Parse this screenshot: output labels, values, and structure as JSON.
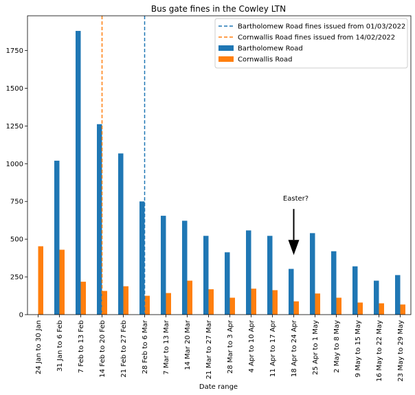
{
  "chart_data": {
    "type": "bar",
    "title": "Bus gate fines in the Cowley LTN",
    "xlabel": "Date range",
    "ylabel": "",
    "ylim": [
      0,
      1980
    ],
    "yticks": [
      0,
      250,
      500,
      750,
      1000,
      1250,
      1500,
      1750
    ],
    "grid": false,
    "legend_position": "top-right",
    "categories": [
      "24 Jan to 30 Jan",
      "31 Jan to 6 Feb",
      "7 Feb to 13 Feb",
      "14 Feb to 20 Feb",
      "21 Feb to 27 Feb",
      "28 Feb to 6 Mar",
      "7 Mar to 13 Mar",
      "14 Mar 20 Mar",
      "21 Mar to 27 Mar",
      "28 Mar to 3 Apr",
      "4 Apr to 10 Apr",
      "11 Apr to 17 Apr",
      "18 Apr to 24 Apr",
      "25 Apr to 1 May",
      "2 May to 8 May",
      "9 May to 15 May",
      "16 May to 22 May",
      "23 May to 29 May"
    ],
    "series": [
      {
        "name": "Bartholomew Road",
        "color": "#1f77b4",
        "values": [
          null,
          1020,
          1880,
          1262,
          1068,
          750,
          655,
          622,
          522,
          413,
          558,
          522,
          303,
          540,
          420,
          320,
          225,
          262
        ]
      },
      {
        "name": "Cornwallis Road",
        "color": "#ff7f0e",
        "values": [
          453,
          430,
          218,
          157,
          188,
          125,
          143,
          225,
          168,
          112,
          172,
          162,
          88,
          140,
          112,
          80,
          75,
          67
        ]
      }
    ],
    "vlines": [
      {
        "label": "Bartholomew Road fines issued from 01/03/2022",
        "color": "#1f77b4",
        "style": "dashed",
        "category": "28 Feb to 6 Mar"
      },
      {
        "label": "Cornwallis Road fines issued from 14/02/2022",
        "color": "#ff7f0e",
        "style": "dashed",
        "category": "14 Feb to 20 Feb"
      }
    ],
    "annotations": [
      {
        "text": "Easter?",
        "category": "18 Apr to 24 Apr",
        "arrow_from_value": 700,
        "arrow_to_value": 395
      }
    ]
  }
}
